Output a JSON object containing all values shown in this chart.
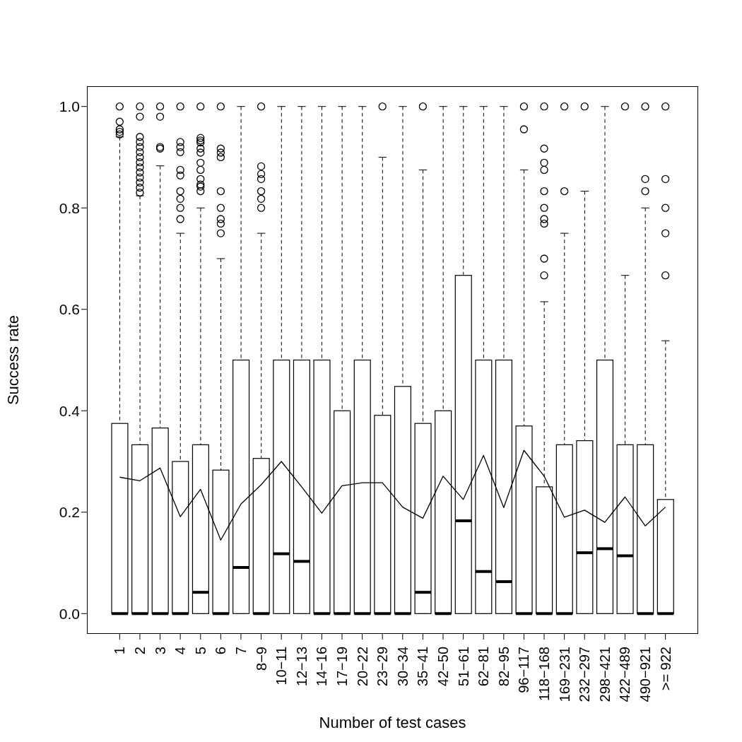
{
  "chart_data": {
    "type": "box",
    "xlabel": "Number of test cases",
    "ylabel": "Success rate",
    "categories": [
      "1",
      "2",
      "3",
      "4",
      "5",
      "6",
      "7",
      "8−9",
      "10−11",
      "12−13",
      "14−16",
      "17−19",
      "20−22",
      "23−29",
      "30−34",
      "35−41",
      "42−50",
      "51−61",
      "62−81",
      "82−95",
      "96−117",
      "118−168",
      "169−231",
      "232−297",
      "298−421",
      "422−489",
      "490−921",
      ">= 922"
    ],
    "boxes": [
      {
        "low": 0,
        "q1": 0,
        "median": 0,
        "q3": 0.375,
        "high": 0.94,
        "outliers": [
          1.0,
          0.97,
          0.955,
          0.95,
          0.945
        ]
      },
      {
        "low": 0,
        "q1": 0,
        "median": 0,
        "q3": 0.333,
        "high": 0.824,
        "outliers": [
          1.0,
          0.98,
          0.94,
          0.93,
          0.92,
          0.91,
          0.9,
          0.89,
          0.88,
          0.87,
          0.86,
          0.85,
          0.84,
          0.83
        ]
      },
      {
        "low": 0,
        "q1": 0,
        "median": 0,
        "q3": 0.366,
        "high": 0.883,
        "outliers": [
          1.0,
          0.98,
          0.92,
          0.917
        ]
      },
      {
        "low": 0,
        "q1": 0,
        "median": 0,
        "q3": 0.3,
        "high": 0.75,
        "outliers": [
          1.0,
          0.93,
          0.92,
          0.91,
          0.875,
          0.864,
          0.833,
          0.818,
          0.8,
          0.778
        ]
      },
      {
        "low": 0,
        "q1": 0,
        "median": 0.042,
        "q3": 0.333,
        "high": 0.8,
        "outliers": [
          1.0,
          0.938,
          0.933,
          0.929,
          0.917,
          0.909,
          0.889,
          0.875,
          0.857,
          0.846,
          0.842,
          0.833
        ]
      },
      {
        "low": 0,
        "q1": 0,
        "median": 0,
        "q3": 0.283,
        "high": 0.7,
        "outliers": [
          1.0,
          0.917,
          0.909,
          0.9,
          0.833,
          0.8,
          0.778,
          0.769,
          0.75
        ]
      },
      {
        "low": 0,
        "q1": 0,
        "median": 0.091,
        "q3": 0.5,
        "high": 1.0
      },
      {
        "low": 0,
        "q1": 0,
        "median": 0,
        "q3": 0.306,
        "high": 0.75,
        "outliers": [
          1.0,
          0.882,
          0.867,
          0.857,
          0.833,
          0.818,
          0.8
        ]
      },
      {
        "low": 0,
        "q1": 0,
        "median": 0.118,
        "q3": 0.5,
        "high": 1.0
      },
      {
        "low": 0,
        "q1": 0,
        "median": 0.103,
        "q3": 0.5,
        "high": 1.0
      },
      {
        "low": 0,
        "q1": 0,
        "median": 0,
        "q3": 0.5,
        "high": 1.0
      },
      {
        "low": 0,
        "q1": 0,
        "median": 0,
        "q3": 0.4,
        "high": 1.0
      },
      {
        "low": 0,
        "q1": 0,
        "median": 0,
        "q3": 0.5,
        "high": 1.0
      },
      {
        "low": 0,
        "q1": 0,
        "median": 0,
        "q3": 0.391,
        "high": 0.9,
        "outliers": [
          1.0
        ]
      },
      {
        "low": 0,
        "q1": 0,
        "median": 0,
        "q3": 0.448,
        "high": 1.0
      },
      {
        "low": 0,
        "q1": 0,
        "median": 0.042,
        "q3": 0.375,
        "high": 0.875,
        "outliers": [
          1.0
        ]
      },
      {
        "low": 0,
        "q1": 0,
        "median": 0,
        "q3": 0.4,
        "high": 1.0
      },
      {
        "low": 0,
        "q1": 0,
        "median": 0.183,
        "q3": 0.667,
        "high": 1.0
      },
      {
        "low": 0,
        "q1": 0,
        "median": 0.083,
        "q3": 0.5,
        "high": 1.0
      },
      {
        "low": 0,
        "q1": 0,
        "median": 0.063,
        "q3": 0.5,
        "high": 1.0
      },
      {
        "low": 0,
        "q1": 0,
        "median": 0,
        "q3": 0.37,
        "high": 0.875,
        "outliers": [
          1.0,
          0.955
        ]
      },
      {
        "low": 0,
        "q1": 0,
        "median": 0,
        "q3": 0.25,
        "high": 0.615,
        "outliers": [
          1.0,
          0.917,
          0.889,
          0.875,
          0.833,
          0.8,
          0.778,
          0.769,
          0.7,
          0.667
        ]
      },
      {
        "low": 0,
        "q1": 0,
        "median": 0,
        "q3": 0.333,
        "high": 0.75,
        "outliers": [
          1.0,
          0.833
        ]
      },
      {
        "low": 0,
        "q1": 0,
        "median": 0.12,
        "q3": 0.341,
        "high": 0.833,
        "outliers": [
          1.0
        ]
      },
      {
        "low": 0,
        "q1": 0,
        "median": 0.128,
        "q3": 0.5,
        "high": 1.0
      },
      {
        "low": 0,
        "q1": 0,
        "median": 0.114,
        "q3": 0.333,
        "high": 0.667,
        "outliers": [
          1.0
        ]
      },
      {
        "low": 0,
        "q1": 0,
        "median": 0,
        "q3": 0.333,
        "high": 0.8,
        "outliers": [
          1.0,
          0.857,
          0.833
        ]
      },
      {
        "low": 0,
        "q1": 0,
        "median": 0,
        "q3": 0.225,
        "high": 0.538,
        "outliers": [
          1.0,
          0.857,
          0.8,
          0.75,
          0.667
        ]
      }
    ],
    "series": [
      {
        "type": "line",
        "color": "#000000",
        "values": [
          0.269,
          0.262,
          0.287,
          0.191,
          0.245,
          0.145,
          0.216,
          0.254,
          0.3,
          0.25,
          0.198,
          0.252,
          0.258,
          0.258,
          0.21,
          0.188,
          0.271,
          0.225,
          0.312,
          0.209,
          0.322,
          0.271,
          0.19,
          0.204,
          0.18,
          0.23,
          0.173,
          0.21
        ]
      }
    ],
    "ylim": [
      -0.04,
      1.04
    ],
    "yticks": [
      {
        "value": 0,
        "label": "0.0"
      },
      0.2,
      0.4,
      0.6,
      0.8,
      {
        "value": 1,
        "label": "1.0"
      }
    ],
    "grid": false
  }
}
